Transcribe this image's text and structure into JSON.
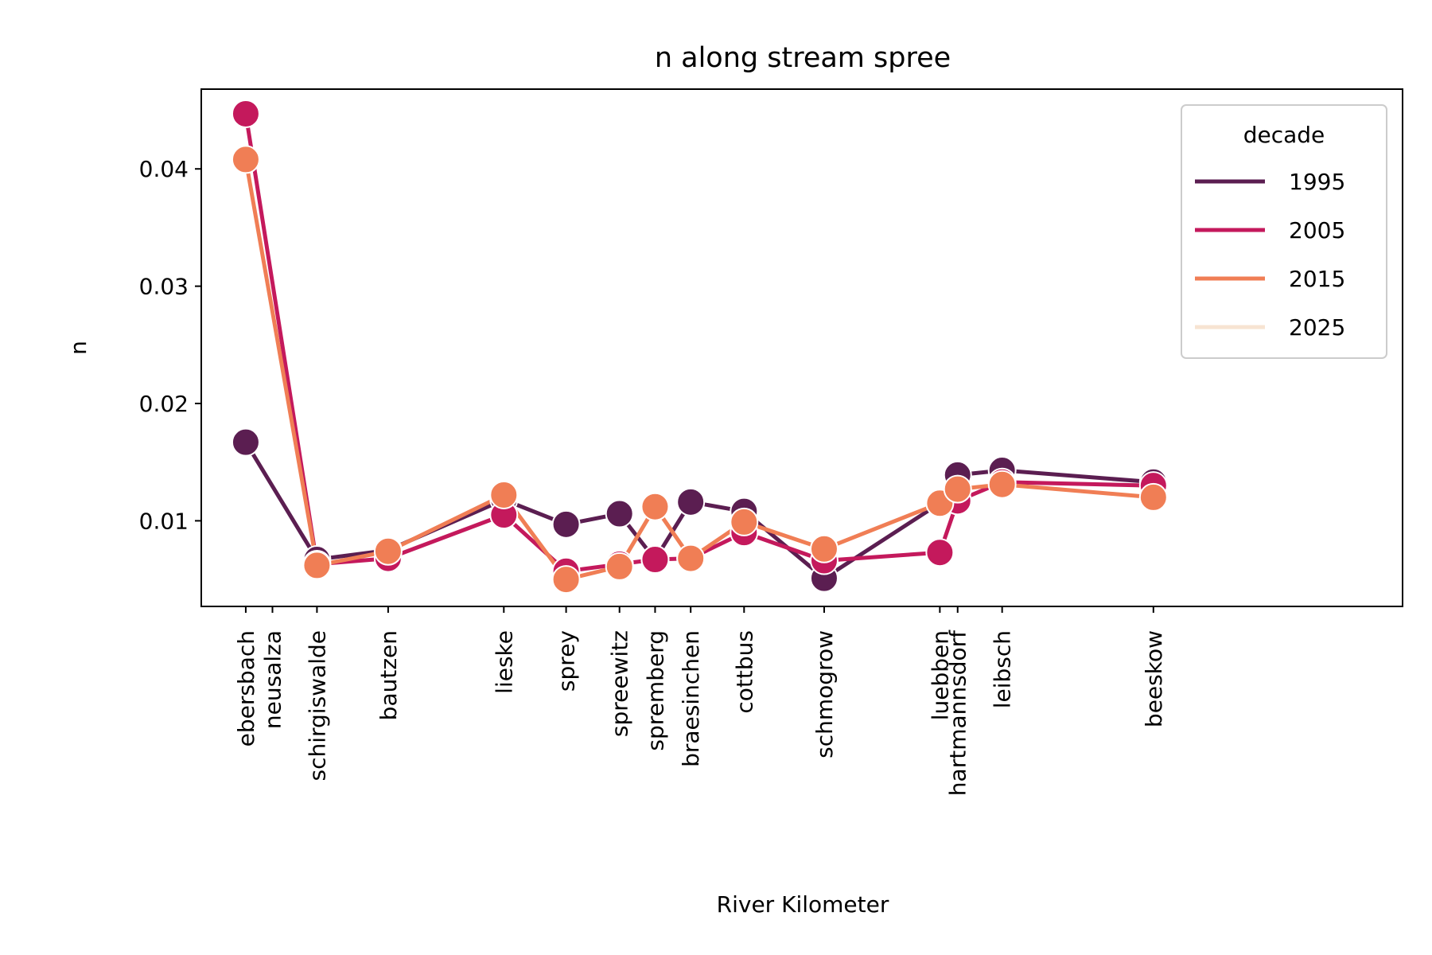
{
  "chart_data": {
    "type": "line",
    "title": "n along stream spree",
    "xlabel": "River Kilometer",
    "ylabel": "n",
    "ylim": [
      0.0027,
      0.0468
    ],
    "yticks": [
      "0.01",
      "0.02",
      "0.03",
      "0.04"
    ],
    "xlim": [
      -5,
      130
    ],
    "grid": false,
    "legend": {
      "title": "decade",
      "placement": "top-right"
    },
    "stations": [
      {
        "name": "ebersbach",
        "km": 0
      },
      {
        "name": "neusalza",
        "km": 3
      },
      {
        "name": "schirgiswalde",
        "km": 8
      },
      {
        "name": "bautzen",
        "km": 16
      },
      {
        "name": "lieske",
        "km": 29
      },
      {
        "name": "sprey",
        "km": 36
      },
      {
        "name": "spreewitz",
        "km": 42
      },
      {
        "name": "spremberg",
        "km": 46
      },
      {
        "name": "braesinchen",
        "km": 50
      },
      {
        "name": "cottbus",
        "km": 56
      },
      {
        "name": "schmogrow",
        "km": 65
      },
      {
        "name": "luebben",
        "km": 78
      },
      {
        "name": "hartmannsdorf",
        "km": 80
      },
      {
        "name": "leibsch",
        "km": 85
      },
      {
        "name": "beeskow",
        "km": 102
      }
    ],
    "series": [
      {
        "name": "1995",
        "color": "#5b1e51",
        "points": [
          [
            0,
            0.0167
          ],
          [
            8,
            0.0067
          ],
          [
            16,
            0.0075
          ],
          [
            29,
            0.0118
          ],
          [
            36,
            0.0097
          ],
          [
            42,
            0.0106
          ],
          [
            46,
            0.0067
          ],
          [
            50,
            0.0116
          ],
          [
            56,
            0.0108
          ],
          [
            65,
            0.0051
          ],
          [
            78,
            0.0115
          ],
          [
            80,
            0.0139
          ],
          [
            85,
            0.0143
          ],
          [
            102,
            0.0133
          ]
        ]
      },
      {
        "name": "2005",
        "color": "#c4195c",
        "points": [
          [
            0,
            0.0447
          ],
          [
            8,
            0.0063
          ],
          [
            16,
            0.0068
          ],
          [
            29,
            0.0105
          ],
          [
            36,
            0.0057
          ],
          [
            42,
            0.0063
          ],
          [
            46,
            0.0067
          ],
          [
            50,
            0.0068
          ],
          [
            56,
            0.009
          ],
          [
            65,
            0.0066
          ],
          [
            78,
            0.0073
          ],
          [
            80,
            0.0117
          ],
          [
            85,
            0.0133
          ],
          [
            102,
            0.013
          ]
        ]
      },
      {
        "name": "2015",
        "color": "#f07e55",
        "points": [
          [
            0,
            0.0408
          ],
          [
            8,
            0.0062
          ],
          [
            16,
            0.0074
          ],
          [
            29,
            0.0122
          ],
          [
            36,
            0.005
          ],
          [
            42,
            0.0061
          ],
          [
            46,
            0.0112
          ],
          [
            50,
            0.0068
          ],
          [
            56,
            0.0099
          ],
          [
            65,
            0.0076
          ],
          [
            78,
            0.0115
          ],
          [
            80,
            0.0127
          ],
          [
            85,
            0.0131
          ],
          [
            102,
            0.012
          ]
        ]
      },
      {
        "name": "2025",
        "color": "#f7e4d2",
        "points": []
      }
    ]
  }
}
